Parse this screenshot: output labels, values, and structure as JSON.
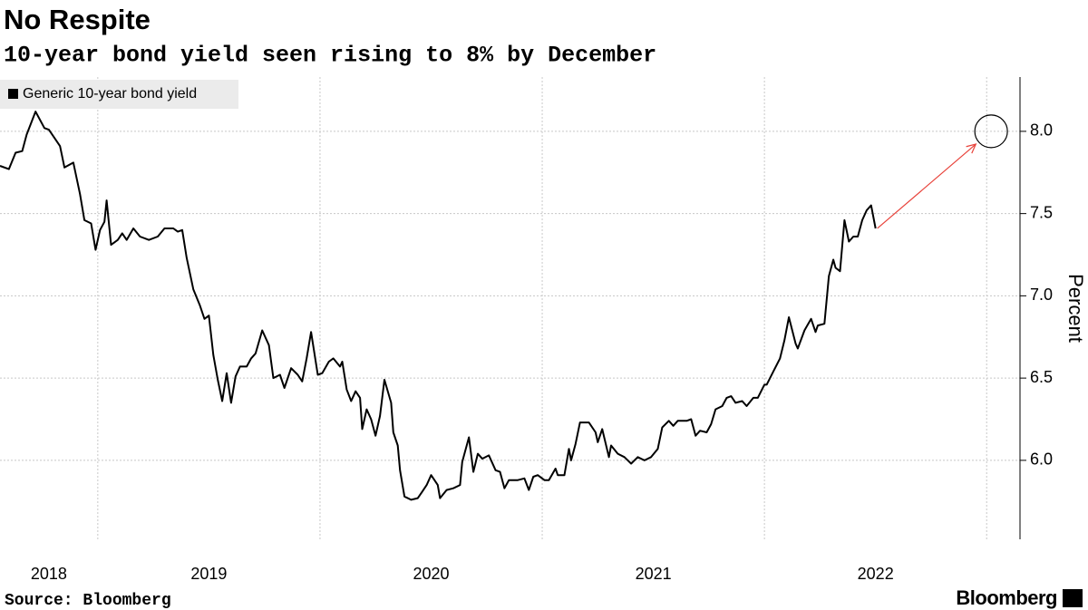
{
  "chart_data": {
    "type": "line",
    "title": "No Respite",
    "subtitle": "10-year bond yield seen rising to 8% by December",
    "y_axis_label": "Percent",
    "source": "Source: Bloomberg",
    "brand": "Bloomberg",
    "x": [
      2018.56,
      2018.6,
      2018.63,
      2018.66,
      2018.68,
      2018.72,
      2018.76,
      2018.78,
      2018.83,
      2018.85,
      2018.89,
      2018.92,
      2018.94,
      2018.97,
      2018.99,
      2019.01,
      2019.03,
      2019.04,
      2019.06,
      2019.09,
      2019.11,
      2019.13,
      2019.16,
      2019.19,
      2019.23,
      2019.27,
      2019.3,
      2019.34,
      2019.36,
      2019.38,
      2019.4,
      2019.43,
      2019.46,
      2019.48,
      2019.5,
      2019.52,
      2019.54,
      2019.56,
      2019.58,
      2019.6,
      2019.62,
      2019.64,
      2019.67,
      2019.69,
      2019.71,
      2019.74,
      2019.77,
      2019.79,
      2019.82,
      2019.84,
      2019.87,
      2019.9,
      2019.92,
      2019.94,
      2019.96,
      2019.99,
      2020.01,
      2020.04,
      2020.06,
      2020.09,
      2020.1,
      2020.12,
      2020.14,
      2020.16,
      2020.18,
      2020.19,
      2020.21,
      2020.23,
      2020.25,
      2020.27,
      2020.29,
      2020.32,
      2020.33,
      2020.35,
      2020.36,
      2020.38,
      2020.41,
      2020.44,
      2020.46,
      2020.48,
      2020.5,
      2020.53,
      2020.54,
      2020.57,
      2020.6,
      2020.63,
      2020.64,
      2020.67,
      2020.69,
      2020.71,
      2020.73,
      2020.76,
      2020.79,
      2020.81,
      2020.83,
      2020.85,
      2020.89,
      2020.92,
      2020.94,
      2020.96,
      2020.98,
      2021.01,
      2021.03,
      2021.06,
      2021.07,
      2021.1,
      2021.12,
      2021.13,
      2021.15,
      2021.17,
      2021.21,
      2021.24,
      2021.25,
      2021.27,
      2021.3,
      2021.31,
      2021.34,
      2021.37,
      2021.4,
      2021.43,
      2021.46,
      2021.49,
      2021.52,
      2021.54,
      2021.57,
      2021.59,
      2021.61,
      2021.65,
      2021.67,
      2021.69,
      2021.71,
      2021.74,
      2021.76,
      2021.78,
      2021.81,
      2021.83,
      2021.85,
      2021.87,
      2021.9,
      2021.92,
      2021.95,
      2021.97,
      2022.0,
      2022.01,
      2022.04,
      2022.07,
      2022.09,
      2022.11,
      2022.14,
      2022.15,
      2022.18,
      2022.21,
      2022.23,
      2022.24,
      2022.27,
      2022.29,
      2022.31,
      2022.32,
      2022.34,
      2022.36,
      2022.38,
      2022.4,
      2022.42,
      2022.44,
      2022.46,
      2022.48,
      2022.5
    ],
    "series": [
      {
        "name": "Generic 10-year bond yield",
        "color": "#000000",
        "values": [
          7.79,
          7.77,
          7.87,
          7.88,
          7.98,
          8.12,
          8.02,
          8.01,
          7.91,
          7.78,
          7.81,
          7.62,
          7.46,
          7.44,
          7.28,
          7.4,
          7.45,
          7.58,
          7.31,
          7.34,
          7.38,
          7.34,
          7.41,
          7.36,
          7.34,
          7.36,
          7.41,
          7.41,
          7.39,
          7.4,
          7.23,
          7.04,
          6.94,
          6.86,
          6.88,
          6.64,
          6.49,
          6.36,
          6.53,
          6.35,
          6.51,
          6.57,
          6.57,
          6.62,
          6.65,
          6.79,
          6.7,
          6.5,
          6.52,
          6.44,
          6.56,
          6.52,
          6.48,
          6.62,
          6.78,
          6.52,
          6.53,
          6.6,
          6.62,
          6.57,
          6.6,
          6.43,
          6.36,
          6.42,
          6.38,
          6.19,
          6.31,
          6.25,
          6.15,
          6.27,
          6.49,
          6.35,
          6.17,
          6.09,
          5.94,
          5.78,
          5.76,
          5.77,
          5.81,
          5.85,
          5.91,
          5.85,
          5.77,
          5.82,
          5.83,
          5.85,
          5.99,
          6.14,
          5.93,
          6.04,
          6.01,
          6.03,
          5.94,
          5.93,
          5.83,
          5.88,
          5.88,
          5.89,
          5.82,
          5.9,
          5.91,
          5.88,
          5.88,
          5.95,
          5.91,
          5.91,
          6.07,
          6.0,
          6.1,
          6.23,
          6.23,
          6.17,
          6.11,
          6.19,
          6.02,
          6.09,
          6.04,
          6.02,
          5.98,
          6.02,
          6.0,
          6.02,
          6.07,
          6.2,
          6.24,
          6.21,
          6.24,
          6.24,
          6.25,
          6.15,
          6.18,
          6.17,
          6.22,
          6.31,
          6.33,
          6.38,
          6.39,
          6.35,
          6.36,
          6.33,
          6.38,
          6.38,
          6.46,
          6.46,
          6.54,
          6.62,
          6.73,
          6.87,
          6.71,
          6.68,
          6.79,
          6.86,
          6.78,
          6.82,
          6.83,
          7.12,
          7.22,
          7.17,
          7.15,
          7.46,
          7.33,
          7.36,
          7.36,
          7.46,
          7.52,
          7.55,
          7.41
        ]
      }
    ],
    "forecast": {
      "x": 2023.02,
      "value": 8.0,
      "color": "#e8423a"
    },
    "xlim": [
      2018.56,
      2023.15
    ],
    "xticks": [
      2018,
      2019,
      2020,
      2021,
      2022
    ],
    "xgrid": [
      2019,
      2020,
      2021,
      2022,
      2023
    ],
    "ylim": [
      5.52,
      8.33
    ],
    "yticks": [
      {
        "value": 6,
        "label": "6.0"
      },
      6.5,
      {
        "value": 7,
        "label": "7.0"
      },
      7.5,
      {
        "value": 8,
        "label": "8.0"
      }
    ],
    "grid": true
  }
}
